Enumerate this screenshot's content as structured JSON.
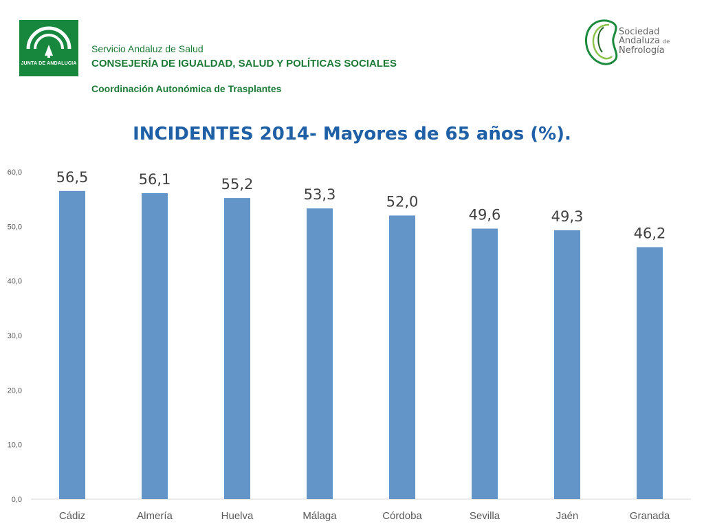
{
  "header": {
    "logo_left_text": "JUNTA DE ANDALUCIA",
    "line1": "Servicio Andaluz de Salud",
    "line2": "CONSEJERÍA DE IGUALDAD, SALUD Y POLÍTICAS SOCIALES",
    "line3": "Coordinación Autonómica de Trasplantes",
    "logo_right": {
      "line1": "Sociedad",
      "line2": "Andaluza",
      "line2_small": "de",
      "line3": "Nefrología"
    }
  },
  "chart_data": {
    "type": "bar",
    "title": "INCIDENTES 2014-  Mayores de 65 años (%).",
    "categories": [
      "Cádiz",
      "Almería",
      "Huelva",
      "Málaga",
      "Córdoba",
      "Sevilla",
      "Jaén",
      "Granada"
    ],
    "values": [
      56.5,
      56.1,
      55.2,
      53.3,
      52.0,
      49.6,
      49.3,
      46.2
    ],
    "data_labels": [
      "56,5",
      "56,1",
      "55,2",
      "53,3",
      "52,0",
      "49,6",
      "49,3",
      "46,2"
    ],
    "yticks": [
      "0,0",
      "10,0",
      "20,0",
      "30,0",
      "40,0",
      "50,0",
      "60,0"
    ],
    "ylim": [
      0,
      60
    ],
    "xlabel": "",
    "ylabel": "",
    "grid": false,
    "legend": "none",
    "bar_color": "#6495c9",
    "title_color": "#1f5fa6",
    "label_color": "#404040"
  }
}
